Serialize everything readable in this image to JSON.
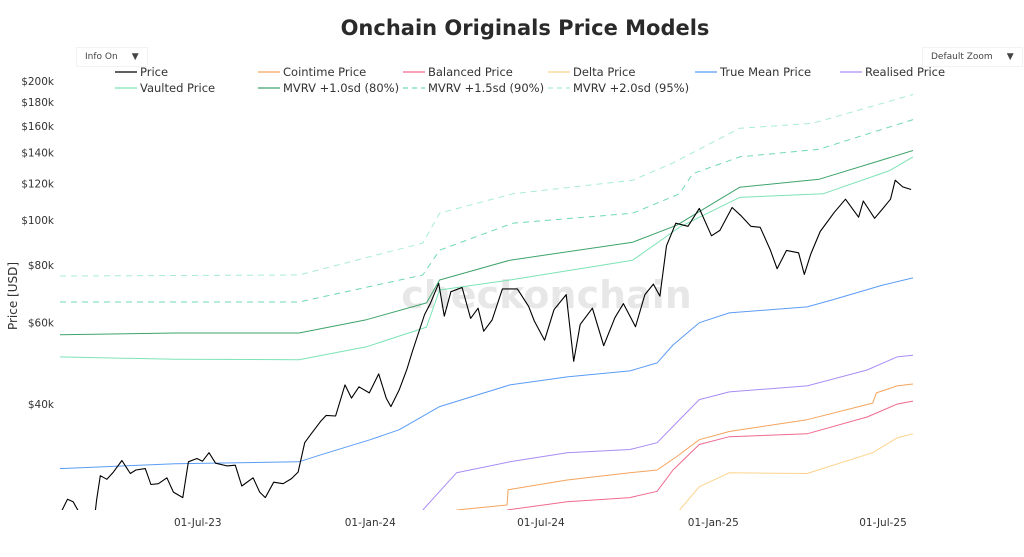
{
  "chart_data": {
    "type": "line",
    "title": "Onchain Originals Price Models",
    "ylabel": "Price [USD]",
    "xlabel": "",
    "yscale": "log",
    "ylim": [
      23600,
      200000
    ],
    "xlim": [
      "2023-02-04",
      "2025-08-02"
    ],
    "grid": false,
    "legend_position": "top",
    "watermark": "checkonchain",
    "y_ticks": [
      {
        "value": 40000,
        "label": "$40k"
      },
      {
        "value": 60000,
        "label": "$60k"
      },
      {
        "value": 80000,
        "label": "$80k"
      },
      {
        "value": 100000,
        "label": "$100k"
      },
      {
        "value": 120000,
        "label": "$120k"
      },
      {
        "value": 140000,
        "label": "$140k"
      },
      {
        "value": 160000,
        "label": "$160k"
      },
      {
        "value": 180000,
        "label": "$180k"
      },
      {
        "value": 200000,
        "label": "$200k"
      }
    ],
    "x_ticks": [
      {
        "value": "2023-07-01",
        "label": "01-Jul-23"
      },
      {
        "value": "2024-01-01",
        "label": "01-Jan-24"
      },
      {
        "value": "2024-07-01",
        "label": "01-Jul-24"
      },
      {
        "value": "2025-01-01",
        "label": "01-Jan-25"
      },
      {
        "value": "2025-07-01",
        "label": "01-Jul-25"
      }
    ],
    "series": [
      {
        "name": "Price",
        "color": "#000000",
        "dash": false,
        "points": [
          [
            "2023-02-05",
            23300
          ],
          [
            "2023-02-12",
            24900
          ],
          [
            "2023-02-18",
            24600
          ],
          [
            "2023-02-25",
            23200
          ],
          [
            "2023-03-05",
            22400
          ],
          [
            "2023-03-10",
            20200
          ],
          [
            "2023-03-15",
            24800
          ],
          [
            "2023-03-19",
            28000
          ],
          [
            "2023-03-26",
            27500
          ],
          [
            "2023-04-02",
            28500
          ],
          [
            "2023-04-11",
            30200
          ],
          [
            "2023-04-20",
            28300
          ],
          [
            "2023-04-26",
            28800
          ],
          [
            "2023-05-06",
            29000
          ],
          [
            "2023-05-12",
            26800
          ],
          [
            "2023-05-20",
            26900
          ],
          [
            "2023-05-29",
            27700
          ],
          [
            "2023-06-05",
            25800
          ],
          [
            "2023-06-15",
            25100
          ],
          [
            "2023-06-21",
            30000
          ],
          [
            "2023-06-30",
            30500
          ],
          [
            "2023-07-06",
            30100
          ],
          [
            "2023-07-13",
            31400
          ],
          [
            "2023-07-20",
            29800
          ],
          [
            "2023-08-01",
            29400
          ],
          [
            "2023-08-10",
            29500
          ],
          [
            "2023-08-17",
            26600
          ],
          [
            "2023-08-29",
            27700
          ],
          [
            "2023-09-05",
            25800
          ],
          [
            "2023-09-11",
            25100
          ],
          [
            "2023-09-20",
            27100
          ],
          [
            "2023-09-30",
            26900
          ],
          [
            "2023-10-09",
            27600
          ],
          [
            "2023-10-16",
            28500
          ],
          [
            "2023-10-23",
            33000
          ],
          [
            "2023-10-30",
            34500
          ],
          [
            "2023-11-09",
            36700
          ],
          [
            "2023-11-15",
            37800
          ],
          [
            "2023-11-25",
            37700
          ],
          [
            "2023-12-05",
            44000
          ],
          [
            "2023-12-12",
            41200
          ],
          [
            "2023-12-20",
            43600
          ],
          [
            "2023-12-31",
            42300
          ],
          [
            "2024-01-10",
            46500
          ],
          [
            "2024-01-18",
            41200
          ],
          [
            "2024-01-23",
            39500
          ],
          [
            "2024-02-01",
            43000
          ],
          [
            "2024-02-09",
            47500
          ],
          [
            "2024-02-15",
            52000
          ],
          [
            "2024-02-28",
            62500
          ],
          [
            "2024-03-05",
            66000
          ],
          [
            "2024-03-14",
            73000
          ],
          [
            "2024-03-20",
            62000
          ],
          [
            "2024-03-27",
            70000
          ],
          [
            "2024-04-08",
            71500
          ],
          [
            "2024-04-17",
            61300
          ],
          [
            "2024-04-25",
            64500
          ],
          [
            "2024-05-01",
            57500
          ],
          [
            "2024-05-10",
            60800
          ],
          [
            "2024-05-21",
            71000
          ],
          [
            "2024-06-06",
            71000
          ],
          [
            "2024-06-18",
            65000
          ],
          [
            "2024-06-24",
            60500
          ],
          [
            "2024-07-05",
            55000
          ],
          [
            "2024-07-15",
            64000
          ],
          [
            "2024-07-28",
            69000
          ],
          [
            "2024-08-05",
            49500
          ],
          [
            "2024-08-12",
            59500
          ],
          [
            "2024-08-25",
            64500
          ],
          [
            "2024-09-06",
            53500
          ],
          [
            "2024-09-18",
            61500
          ],
          [
            "2024-09-27",
            66000
          ],
          [
            "2024-10-10",
            58800
          ],
          [
            "2024-10-20",
            69000
          ],
          [
            "2024-10-29",
            72700
          ],
          [
            "2024-11-05",
            68500
          ],
          [
            "2024-11-12",
            88000
          ],
          [
            "2024-11-22",
            98500
          ],
          [
            "2024-12-05",
            97000
          ],
          [
            "2024-12-17",
            106000
          ],
          [
            "2024-12-30",
            92500
          ],
          [
            "2025-01-08",
            95000
          ],
          [
            "2025-01-21",
            106500
          ],
          [
            "2025-01-31",
            102000
          ],
          [
            "2025-02-10",
            97000
          ],
          [
            "2025-02-20",
            96500
          ],
          [
            "2025-03-03",
            86000
          ],
          [
            "2025-03-10",
            78500
          ],
          [
            "2025-03-20",
            86000
          ],
          [
            "2025-04-02",
            85000
          ],
          [
            "2025-04-08",
            76300
          ],
          [
            "2025-04-15",
            84500
          ],
          [
            "2025-04-25",
            94500
          ],
          [
            "2025-05-10",
            104000
          ],
          [
            "2025-05-22",
            111000
          ],
          [
            "2025-06-05",
            101500
          ],
          [
            "2025-06-10",
            110000
          ],
          [
            "2025-06-22",
            100900
          ],
          [
            "2025-07-01",
            106000
          ],
          [
            "2025-07-09",
            111000
          ],
          [
            "2025-07-14",
            122000
          ],
          [
            "2025-07-22",
            118000
          ],
          [
            "2025-07-31",
            116500
          ]
        ]
      },
      {
        "name": "Cointime Price",
        "color": "#f5a45c",
        "dash": false,
        "points": [
          [
            "2024-04-02",
            23600
          ],
          [
            "2024-05-26",
            24200
          ],
          [
            "2024-05-27",
            26100
          ],
          [
            "2024-07-29",
            27400
          ],
          [
            "2024-10-04",
            28400
          ],
          [
            "2024-11-02",
            28800
          ],
          [
            "2024-11-23",
            30800
          ],
          [
            "2024-12-17",
            33500
          ],
          [
            "2025-01-18",
            34900
          ],
          [
            "2025-04-11",
            37000
          ],
          [
            "2025-06-20",
            40200
          ],
          [
            "2025-06-24",
            42300
          ],
          [
            "2025-07-16",
            43800
          ],
          [
            "2025-08-02",
            44200
          ]
        ]
      },
      {
        "name": "Balanced Price",
        "color": "#f06a8f",
        "dash": false,
        "points": [
          [
            "2024-05-26",
            23600
          ],
          [
            "2024-07-29",
            24600
          ],
          [
            "2024-10-04",
            25100
          ],
          [
            "2024-11-02",
            25900
          ],
          [
            "2024-11-19",
            28800
          ],
          [
            "2024-12-17",
            32700
          ],
          [
            "2025-01-18",
            34000
          ],
          [
            "2025-04-11",
            34500
          ],
          [
            "2025-06-14",
            37500
          ],
          [
            "2025-07-16",
            40000
          ],
          [
            "2025-08-02",
            40600
          ]
        ]
      },
      {
        "name": "Delta Price",
        "color": "#fcd38c",
        "dash": false,
        "points": [
          [
            "2024-11-26",
            23600
          ],
          [
            "2024-12-17",
            26500
          ],
          [
            "2025-01-18",
            28400
          ],
          [
            "2025-04-11",
            28300
          ],
          [
            "2025-06-20",
            31400
          ],
          [
            "2025-07-16",
            33800
          ],
          [
            "2025-08-02",
            34500
          ]
        ]
      },
      {
        "name": "True Mean Price",
        "color": "#5b9cf5",
        "dash": false,
        "points": [
          [
            "2023-02-04",
            29000
          ],
          [
            "2023-06-07",
            29700
          ],
          [
            "2023-10-17",
            30000
          ],
          [
            "2023-11-08",
            31000
          ],
          [
            "2024-01-01",
            33500
          ],
          [
            "2024-02-01",
            35200
          ],
          [
            "2024-03-15",
            39500
          ],
          [
            "2024-05-29",
            44000
          ],
          [
            "2024-07-29",
            45800
          ],
          [
            "2024-10-04",
            47200
          ],
          [
            "2024-11-02",
            49100
          ],
          [
            "2024-11-19",
            53700
          ],
          [
            "2024-12-17",
            60000
          ],
          [
            "2025-01-18",
            63000
          ],
          [
            "2025-04-11",
            64900
          ],
          [
            "2025-05-08",
            67200
          ],
          [
            "2025-07-01",
            72400
          ],
          [
            "2025-08-02",
            75000
          ]
        ]
      },
      {
        "name": "Realised Price",
        "color": "#a98cf5",
        "dash": false,
        "points": [
          [
            "2024-02-26",
            23600
          ],
          [
            "2024-04-02",
            28400
          ],
          [
            "2024-05-29",
            30000
          ],
          [
            "2024-07-29",
            31400
          ],
          [
            "2024-10-04",
            31900
          ],
          [
            "2024-11-02",
            33000
          ],
          [
            "2024-11-23",
            36500
          ],
          [
            "2024-12-17",
            40900
          ],
          [
            "2025-01-18",
            42500
          ],
          [
            "2025-04-11",
            43800
          ],
          [
            "2025-06-14",
            47400
          ],
          [
            "2025-07-16",
            50600
          ],
          [
            "2025-08-02",
            51000
          ]
        ]
      },
      {
        "name": "Vaulted Price",
        "color": "#7de3b5",
        "dash": false,
        "points": [
          [
            "2023-02-04",
            50600
          ],
          [
            "2023-06-07",
            50000
          ],
          [
            "2023-10-17",
            49900
          ],
          [
            "2023-12-28",
            53200
          ],
          [
            "2024-03-01",
            58700
          ],
          [
            "2024-03-15",
            70600
          ],
          [
            "2024-05-29",
            74200
          ],
          [
            "2024-10-07",
            81900
          ],
          [
            "2024-11-26",
            96600
          ],
          [
            "2025-01-29",
            112000
          ],
          [
            "2025-04-28",
            114000
          ],
          [
            "2025-07-08",
            128000
          ],
          [
            "2025-08-02",
            137000
          ]
        ]
      },
      {
        "name": "MVRV +1.0sd (80%)",
        "color": "#3ea36b",
        "dash": false,
        "points": [
          [
            "2023-02-04",
            56500
          ],
          [
            "2023-06-07",
            57000
          ],
          [
            "2023-10-17",
            57000
          ],
          [
            "2023-12-28",
            60900
          ],
          [
            "2024-03-01",
            66200
          ],
          [
            "2024-03-15",
            74200
          ],
          [
            "2024-05-29",
            81900
          ],
          [
            "2024-10-07",
            89600
          ],
          [
            "2024-11-23",
            97500
          ],
          [
            "2025-01-29",
            117800
          ],
          [
            "2025-04-24",
            122600
          ],
          [
            "2025-08-02",
            141500
          ]
        ]
      },
      {
        "name": "MVRV +1.5sd (90%)",
        "color": "#6ed9b0",
        "dash": true,
        "points": [
          [
            "2023-02-04",
            66500
          ],
          [
            "2023-10-17",
            66500
          ],
          [
            "2024-02-26",
            76100
          ],
          [
            "2024-03-15",
            86100
          ],
          [
            "2024-06-01",
            98500
          ],
          [
            "2024-10-07",
            103500
          ],
          [
            "2024-11-26",
            114000
          ],
          [
            "2024-12-10",
            126000
          ],
          [
            "2025-01-29",
            137000
          ],
          [
            "2025-04-24",
            142400
          ],
          [
            "2025-08-02",
            165000
          ]
        ]
      },
      {
        "name": "MVRV +2.0sd (95%)",
        "color": "#a8ecd6",
        "dash": true,
        "points": [
          [
            "2023-02-04",
            75700
          ],
          [
            "2023-10-17",
            76100
          ],
          [
            "2024-02-26",
            89200
          ],
          [
            "2024-03-15",
            103500
          ],
          [
            "2024-06-01",
            114000
          ],
          [
            "2024-10-07",
            122000
          ],
          [
            "2024-11-19",
            133000
          ],
          [
            "2025-01-29",
            158000
          ],
          [
            "2025-04-17",
            162000
          ],
          [
            "2025-08-02",
            187000
          ]
        ]
      }
    ]
  },
  "controls": {
    "info_label": "Info On",
    "zoom_label": "Default Zoom",
    "caret": "▼"
  }
}
